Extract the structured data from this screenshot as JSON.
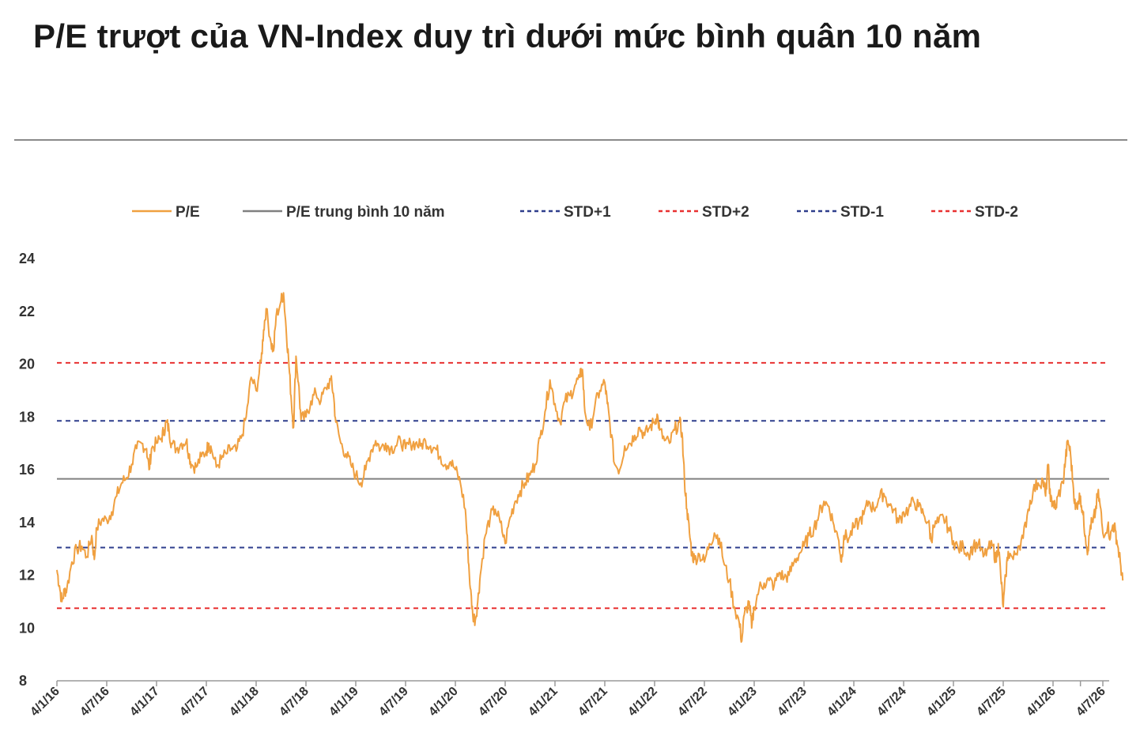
{
  "title": "P/E trượt của VN-Index duy trì dưới mức bình quân 10 năm",
  "chart_data": {
    "type": "line",
    "ylim": [
      8,
      24
    ],
    "yticks": [
      8,
      10,
      12,
      14,
      16,
      18,
      20,
      22,
      24
    ],
    "xtick_labels": [
      "4/1/16",
      "4/7/16",
      "4/1/17",
      "4/7/17",
      "4/1/18",
      "4/7/18",
      "4/1/19",
      "4/7/19",
      "4/1/20",
      "4/7/20",
      "4/1/21",
      "4/7/21",
      "4/1/22",
      "4/7/22",
      "4/1/23",
      "4/7/23",
      "4/1/24",
      "4/7/24",
      "4/1/25",
      "4/7/25",
      "4/1/26",
      "4/7/26"
    ],
    "x_end": 20.55,
    "legend_position": "top",
    "grid": false,
    "colors": {
      "pe": "#F0A040",
      "mean": "#808080",
      "std1": "#2E3E8C",
      "std2": "#E83030"
    },
    "series": [
      {
        "name": "P/E",
        "points": [
          [
            0.0,
            12.2
          ],
          [
            0.05,
            11.6
          ],
          [
            0.1,
            11.0
          ],
          [
            0.15,
            11.4
          ],
          [
            0.2,
            11.5
          ],
          [
            0.3,
            12.5
          ],
          [
            0.4,
            13.0
          ],
          [
            0.5,
            13.1
          ],
          [
            0.6,
            12.7
          ],
          [
            0.7,
            13.5
          ],
          [
            0.75,
            12.6
          ],
          [
            0.8,
            13.8
          ],
          [
            0.9,
            14.1
          ],
          [
            1.0,
            14.1
          ],
          [
            1.1,
            14.4
          ],
          [
            1.2,
            15.0
          ],
          [
            1.3,
            15.5
          ],
          [
            1.4,
            15.7
          ],
          [
            1.5,
            16.2
          ],
          [
            1.6,
            16.8
          ],
          [
            1.7,
            17.0
          ],
          [
            1.8,
            16.8
          ],
          [
            1.85,
            16.0
          ],
          [
            1.9,
            16.8
          ],
          [
            2.0,
            17.0
          ],
          [
            2.1,
            17.2
          ],
          [
            2.15,
            17.5
          ],
          [
            2.2,
            17.8
          ],
          [
            2.25,
            17.5
          ],
          [
            2.3,
            17.0
          ],
          [
            2.4,
            16.8
          ],
          [
            2.5,
            17.0
          ],
          [
            2.6,
            17.1
          ],
          [
            2.65,
            16.6
          ],
          [
            2.7,
            16.2
          ],
          [
            2.8,
            16.1
          ],
          [
            2.9,
            16.5
          ],
          [
            3.0,
            16.7
          ],
          [
            3.05,
            17.0
          ],
          [
            3.1,
            16.8
          ],
          [
            3.2,
            16.1
          ],
          [
            3.3,
            16.4
          ],
          [
            3.4,
            16.6
          ],
          [
            3.5,
            16.8
          ],
          [
            3.6,
            16.7
          ],
          [
            3.7,
            17.2
          ],
          [
            3.8,
            18.0
          ],
          [
            3.9,
            19.5
          ],
          [
            4.0,
            19.0
          ],
          [
            4.1,
            20.1
          ],
          [
            4.15,
            21.3
          ],
          [
            4.2,
            22.1
          ],
          [
            4.3,
            20.8
          ],
          [
            4.35,
            20.5
          ],
          [
            4.4,
            21.8
          ],
          [
            4.5,
            22.4
          ],
          [
            4.55,
            22.7
          ],
          [
            4.6,
            21.4
          ],
          [
            4.65,
            20.2
          ],
          [
            4.7,
            18.8
          ],
          [
            4.75,
            17.6
          ],
          [
            4.8,
            20.3
          ],
          [
            4.85,
            19.3
          ],
          [
            4.9,
            17.9
          ],
          [
            5.0,
            18.0
          ],
          [
            5.1,
            18.6
          ],
          [
            5.2,
            18.9
          ],
          [
            5.3,
            18.6
          ],
          [
            5.4,
            19.1
          ],
          [
            5.5,
            19.4
          ],
          [
            5.55,
            18.9
          ],
          [
            5.6,
            17.8
          ],
          [
            5.7,
            17.0
          ],
          [
            5.8,
            16.6
          ],
          [
            5.9,
            16.2
          ],
          [
            6.0,
            15.8
          ],
          [
            6.1,
            15.5
          ],
          [
            6.2,
            16.0
          ],
          [
            6.3,
            16.7
          ],
          [
            6.4,
            17.1
          ],
          [
            6.5,
            16.8
          ],
          [
            6.6,
            17.0
          ],
          [
            6.7,
            16.8
          ],
          [
            6.8,
            16.9
          ],
          [
            6.9,
            17.1
          ],
          [
            7.0,
            16.8
          ],
          [
            7.1,
            17.0
          ],
          [
            7.2,
            17.0
          ],
          [
            7.3,
            16.9
          ],
          [
            7.4,
            17.1
          ],
          [
            7.5,
            16.9
          ],
          [
            7.6,
            16.8
          ],
          [
            7.7,
            16.5
          ],
          [
            7.8,
            16.2
          ],
          [
            7.9,
            16.3
          ],
          [
            8.0,
            16.0
          ],
          [
            8.1,
            15.5
          ],
          [
            8.2,
            14.5
          ],
          [
            8.25,
            13.0
          ],
          [
            8.3,
            11.5
          ],
          [
            8.35,
            10.5
          ],
          [
            8.4,
            10.3
          ],
          [
            8.45,
            11.0
          ],
          [
            8.5,
            12.0
          ],
          [
            8.6,
            13.5
          ],
          [
            8.7,
            14.2
          ],
          [
            8.8,
            14.5
          ],
          [
            8.9,
            14.0
          ],
          [
            9.0,
            13.2
          ],
          [
            9.1,
            14.2
          ],
          [
            9.2,
            14.8
          ],
          [
            9.3,
            15.2
          ],
          [
            9.4,
            15.5
          ],
          [
            9.5,
            15.8
          ],
          [
            9.6,
            16.2
          ],
          [
            9.7,
            17.2
          ],
          [
            9.8,
            18.2
          ],
          [
            9.9,
            19.4
          ],
          [
            10.0,
            18.5
          ],
          [
            10.1,
            17.8
          ],
          [
            10.2,
            18.6
          ],
          [
            10.3,
            18.8
          ],
          [
            10.4,
            19.2
          ],
          [
            10.5,
            19.5
          ],
          [
            10.55,
            19.8
          ],
          [
            10.6,
            18.2
          ],
          [
            10.7,
            17.5
          ],
          [
            10.8,
            18.4
          ],
          [
            10.9,
            19.0
          ],
          [
            11.0,
            19.3
          ],
          [
            11.05,
            18.5
          ],
          [
            11.1,
            17.8
          ],
          [
            11.2,
            16.2
          ],
          [
            11.3,
            16.0
          ],
          [
            11.4,
            16.9
          ],
          [
            11.5,
            17.0
          ],
          [
            11.6,
            17.3
          ],
          [
            11.7,
            17.6
          ],
          [
            11.8,
            17.3
          ],
          [
            11.9,
            17.6
          ],
          [
            12.0,
            17.8
          ],
          [
            12.05,
            18.1
          ],
          [
            12.1,
            17.5
          ],
          [
            12.2,
            17.1
          ],
          [
            12.3,
            17.0
          ],
          [
            12.4,
            17.5
          ],
          [
            12.5,
            17.8
          ],
          [
            12.55,
            17.4
          ],
          [
            12.6,
            15.6
          ],
          [
            12.65,
            14.5
          ],
          [
            12.7,
            13.6
          ],
          [
            12.75,
            12.8
          ],
          [
            12.8,
            12.6
          ],
          [
            12.9,
            12.8
          ],
          [
            13.0,
            12.5
          ],
          [
            13.1,
            13.2
          ],
          [
            13.2,
            13.6
          ],
          [
            13.3,
            13.4
          ],
          [
            13.4,
            12.4
          ],
          [
            13.5,
            11.8
          ],
          [
            13.6,
            10.8
          ],
          [
            13.7,
            10.2
          ],
          [
            13.75,
            9.5
          ],
          [
            13.8,
            10.5
          ],
          [
            13.9,
            11.0
          ],
          [
            13.95,
            10.0
          ],
          [
            14.0,
            10.8
          ],
          [
            14.1,
            11.5
          ],
          [
            14.2,
            11.7
          ],
          [
            14.3,
            11.8
          ],
          [
            14.4,
            11.6
          ],
          [
            14.5,
            12.1
          ],
          [
            14.6,
            11.9
          ],
          [
            14.7,
            12.0
          ],
          [
            14.8,
            12.5
          ],
          [
            14.9,
            12.8
          ],
          [
            15.0,
            13.1
          ],
          [
            15.1,
            13.5
          ],
          [
            15.2,
            13.8
          ],
          [
            15.3,
            14.3
          ],
          [
            15.4,
            14.8
          ],
          [
            15.5,
            14.6
          ],
          [
            15.6,
            13.9
          ],
          [
            15.7,
            13.3
          ],
          [
            15.75,
            12.5
          ],
          [
            15.8,
            13.5
          ],
          [
            15.9,
            13.4
          ],
          [
            16.0,
            13.8
          ],
          [
            16.1,
            14.0
          ],
          [
            16.2,
            14.3
          ],
          [
            16.3,
            14.8
          ],
          [
            16.4,
            14.5
          ],
          [
            16.5,
            14.9
          ],
          [
            16.6,
            15.1
          ],
          [
            16.7,
            14.7
          ],
          [
            16.8,
            14.5
          ],
          [
            16.9,
            14.0
          ],
          [
            17.0,
            14.4
          ],
          [
            17.1,
            14.5
          ],
          [
            17.2,
            14.8
          ],
          [
            17.3,
            14.6
          ],
          [
            17.4,
            14.3
          ],
          [
            17.5,
            14.0
          ],
          [
            17.55,
            13.3
          ],
          [
            17.6,
            13.8
          ],
          [
            17.7,
            14.0
          ],
          [
            17.8,
            14.2
          ],
          [
            17.9,
            13.8
          ],
          [
            18.0,
            13.3
          ],
          [
            18.1,
            13.0
          ],
          [
            18.2,
            13.1
          ],
          [
            18.3,
            12.8
          ],
          [
            18.4,
            13.1
          ],
          [
            18.5,
            13.2
          ],
          [
            18.6,
            12.7
          ],
          [
            18.7,
            13.0
          ],
          [
            18.8,
            13.1
          ],
          [
            18.85,
            12.5
          ],
          [
            18.9,
            13.2
          ],
          [
            18.95,
            12.0
          ],
          [
            19.0,
            10.8
          ],
          [
            19.05,
            12.0
          ],
          [
            19.1,
            12.9
          ],
          [
            19.2,
            12.6
          ],
          [
            19.3,
            13.1
          ],
          [
            19.4,
            13.4
          ],
          [
            19.5,
            14.5
          ],
          [
            19.6,
            15.2
          ],
          [
            19.7,
            15.5
          ],
          [
            19.8,
            15.6
          ],
          [
            19.85,
            15.0
          ],
          [
            19.9,
            16.2
          ],
          [
            19.95,
            14.8
          ],
          [
            20.0,
            14.8
          ],
          [
            20.05,
            14.5
          ],
          [
            20.1,
            15.0
          ],
          [
            20.2,
            15.5
          ],
          [
            20.25,
            16.4
          ],
          [
            20.3,
            17.1
          ],
          [
            20.35,
            16.6
          ],
          [
            20.4,
            15.5
          ],
          [
            20.45,
            14.5
          ],
          [
            20.5,
            14.8
          ],
          [
            20.55,
            15.0
          ],
          [
            20.6,
            14.3
          ],
          [
            20.65,
            13.5
          ],
          [
            20.7,
            12.9
          ],
          [
            20.75,
            13.9
          ],
          [
            20.8,
            14.0
          ],
          [
            20.85,
            14.4
          ],
          [
            20.9,
            15.1
          ],
          [
            20.95,
            14.6
          ],
          [
            21.0,
            13.6
          ],
          [
            21.1,
            13.9
          ],
          [
            21.15,
            13.4
          ],
          [
            21.2,
            13.9
          ],
          [
            21.25,
            13.7
          ],
          [
            21.3,
            13.1
          ],
          [
            21.35,
            12.5
          ],
          [
            21.4,
            11.8
          ]
        ]
      },
      {
        "name": "P/E trung bình 10 năm",
        "value": 15.65
      },
      {
        "name": "STD+1",
        "value": 17.85
      },
      {
        "name": "STD+2",
        "value": 20.05
      },
      {
        "name": "STD-1",
        "value": 13.05
      },
      {
        "name": "STD-2",
        "value": 10.75
      }
    ]
  }
}
